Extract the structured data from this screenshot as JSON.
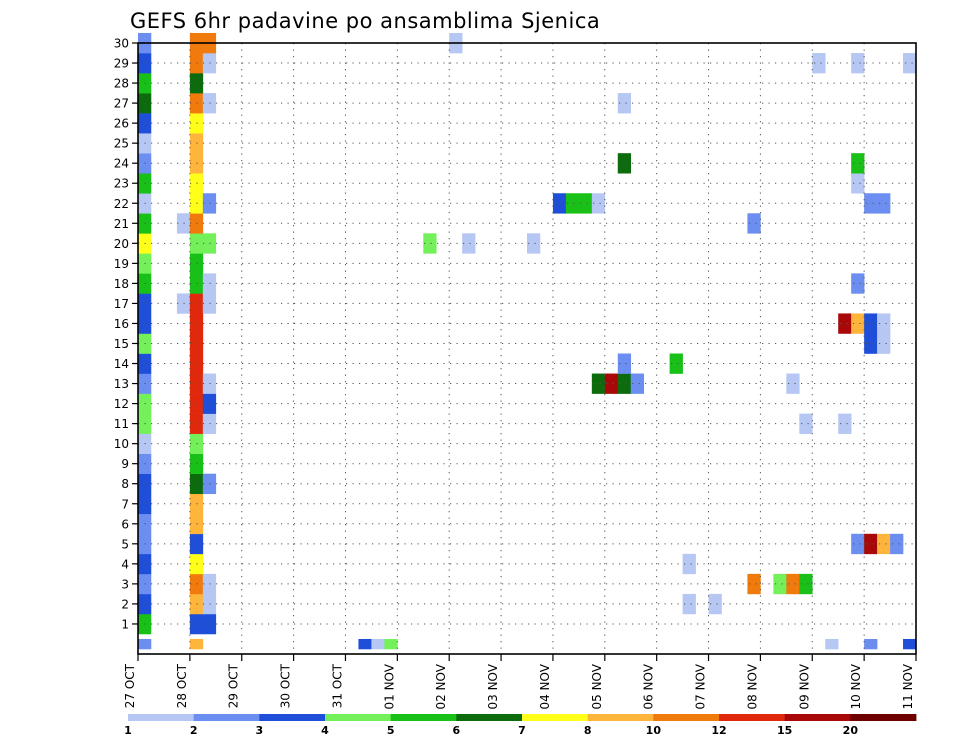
{
  "chart_data": {
    "type": "heatmap",
    "title": "GEFS 6hr padavine po ansamblima Sjenica",
    "xlabel": "",
    "ylabel": "",
    "x_tick_labels": [
      "27 OCT",
      "28 OCT",
      "29 OCT",
      "30 OCT",
      "31 OCT",
      "01 NOV",
      "02 NOV",
      "03 NOV",
      "04 NOV",
      "05 NOV",
      "06 NOV",
      "07 NOV",
      "08 NOV",
      "09 NOV",
      "10 NOV",
      "11 NOV"
    ],
    "y_tick_labels": [
      "1",
      "2",
      "3",
      "4",
      "5",
      "6",
      "7",
      "8",
      "9",
      "10",
      "11",
      "12",
      "13",
      "14",
      "15",
      "16",
      "17",
      "18",
      "19",
      "20",
      "21",
      "22",
      "23",
      "24",
      "25",
      "26",
      "27",
      "28",
      "29",
      "30"
    ],
    "x_range_steps": [
      0,
      60
    ],
    "y_range_members": [
      0,
      30
    ],
    "grid": true,
    "colorbar": {
      "position": "bottom",
      "levels": [
        "1",
        "2",
        "3",
        "4",
        "5",
        "6",
        "7",
        "8",
        "10",
        "12",
        "15",
        "20"
      ],
      "colors": [
        "#b7c7f4",
        "#6b8ef0",
        "#1f4fd8",
        "#73f05a",
        "#18c018",
        "#0c6b0c",
        "#ffff1a",
        "#ffb43c",
        "#f07a0c",
        "#e0280c",
        "#a80808",
        "#6e0000"
      ]
    },
    "cells": [
      {
        "m": 0,
        "t": 0,
        "c": 1
      },
      {
        "m": 0,
        "t": 4,
        "c": 7
      },
      {
        "m": 0,
        "t": 17,
        "c": 2
      },
      {
        "m": 0,
        "t": 18,
        "c": 0
      },
      {
        "m": 0,
        "t": 19,
        "c": 3
      },
      {
        "m": 0,
        "t": 53,
        "c": 0
      },
      {
        "m": 0,
        "t": 56,
        "c": 1
      },
      {
        "m": 0,
        "t": 59,
        "c": 2
      },
      {
        "m": 1,
        "t": 0,
        "c": 4
      },
      {
        "m": 1,
        "t": 4,
        "c": 2
      },
      {
        "m": 1,
        "t": 5,
        "c": 2
      },
      {
        "m": 2,
        "t": 0,
        "c": 2
      },
      {
        "m": 2,
        "t": 4,
        "c": 7
      },
      {
        "m": 2,
        "t": 5,
        "c": 0
      },
      {
        "m": 2,
        "t": 42,
        "c": 0
      },
      {
        "m": 2,
        "t": 44,
        "c": 0
      },
      {
        "m": 3,
        "t": 0,
        "c": 1
      },
      {
        "m": 3,
        "t": 4,
        "c": 8
      },
      {
        "m": 3,
        "t": 5,
        "c": 0
      },
      {
        "m": 3,
        "t": 47,
        "c": 8
      },
      {
        "m": 3,
        "t": 49,
        "c": 3
      },
      {
        "m": 3,
        "t": 50,
        "c": 8
      },
      {
        "m": 3,
        "t": 51,
        "c": 4
      },
      {
        "m": 4,
        "t": 0,
        "c": 2
      },
      {
        "m": 4,
        "t": 4,
        "c": 6
      },
      {
        "m": 4,
        "t": 42,
        "c": 0
      },
      {
        "m": 5,
        "t": 0,
        "c": 1
      },
      {
        "m": 5,
        "t": 4,
        "c": 2
      },
      {
        "m": 5,
        "t": 55,
        "c": 1
      },
      {
        "m": 5,
        "t": 56,
        "c": 10
      },
      {
        "m": 5,
        "t": 57,
        "c": 7
      },
      {
        "m": 5,
        "t": 58,
        "c": 1
      },
      {
        "m": 6,
        "t": 0,
        "c": 1
      },
      {
        "m": 6,
        "t": 4,
        "c": 7
      },
      {
        "m": 7,
        "t": 0,
        "c": 2
      },
      {
        "m": 7,
        "t": 4,
        "c": 7
      },
      {
        "m": 8,
        "t": 0,
        "c": 2
      },
      {
        "m": 8,
        "t": 4,
        "c": 5
      },
      {
        "m": 8,
        "t": 5,
        "c": 1
      },
      {
        "m": 9,
        "t": 0,
        "c": 1
      },
      {
        "m": 9,
        "t": 4,
        "c": 4
      },
      {
        "m": 10,
        "t": 0,
        "c": 0
      },
      {
        "m": 10,
        "t": 4,
        "c": 3
      },
      {
        "m": 11,
        "t": 0,
        "c": 3
      },
      {
        "m": 11,
        "t": 4,
        "c": 9
      },
      {
        "m": 11,
        "t": 5,
        "c": 0
      },
      {
        "m": 11,
        "t": 51,
        "c": 0
      },
      {
        "m": 11,
        "t": 54,
        "c": 0
      },
      {
        "m": 12,
        "t": 0,
        "c": 3
      },
      {
        "m": 12,
        "t": 4,
        "c": 9
      },
      {
        "m": 12,
        "t": 5,
        "c": 2
      },
      {
        "m": 13,
        "t": 0,
        "c": 1
      },
      {
        "m": 13,
        "t": 4,
        "c": 9
      },
      {
        "m": 13,
        "t": 5,
        "c": 0
      },
      {
        "m": 13,
        "t": 35,
        "c": 5
      },
      {
        "m": 13,
        "t": 36,
        "c": 10
      },
      {
        "m": 13,
        "t": 37,
        "c": 5
      },
      {
        "m": 13,
        "t": 38,
        "c": 1
      },
      {
        "m": 13,
        "t": 50,
        "c": 0
      },
      {
        "m": 14,
        "t": 0,
        "c": 2
      },
      {
        "m": 14,
        "t": 4,
        "c": 9
      },
      {
        "m": 14,
        "t": 37,
        "c": 1
      },
      {
        "m": 14,
        "t": 41,
        "c": 4
      },
      {
        "m": 15,
        "t": 0,
        "c": 3
      },
      {
        "m": 15,
        "t": 4,
        "c": 9
      },
      {
        "m": 15,
        "t": 56,
        "c": 2
      },
      {
        "m": 15,
        "t": 57,
        "c": 0
      },
      {
        "m": 16,
        "t": 0,
        "c": 2
      },
      {
        "m": 16,
        "t": 4,
        "c": 9
      },
      {
        "m": 16,
        "t": 54,
        "c": 10
      },
      {
        "m": 16,
        "t": 55,
        "c": 7
      },
      {
        "m": 16,
        "t": 56,
        "c": 2
      },
      {
        "m": 16,
        "t": 57,
        "c": 0
      },
      {
        "m": 17,
        "t": 0,
        "c": 2
      },
      {
        "m": 17,
        "t": 3,
        "c": 0
      },
      {
        "m": 17,
        "t": 4,
        "c": 9
      },
      {
        "m": 17,
        "t": 5,
        "c": 0
      },
      {
        "m": 18,
        "t": 0,
        "c": 4
      },
      {
        "m": 18,
        "t": 4,
        "c": 4
      },
      {
        "m": 18,
        "t": 5,
        "c": 0
      },
      {
        "m": 18,
        "t": 55,
        "c": 1
      },
      {
        "m": 19,
        "t": 0,
        "c": 3
      },
      {
        "m": 19,
        "t": 4,
        "c": 4
      },
      {
        "m": 20,
        "t": 0,
        "c": 6
      },
      {
        "m": 20,
        "t": 4,
        "c": 3
      },
      {
        "m": 20,
        "t": 5,
        "c": 3
      },
      {
        "m": 20,
        "t": 22,
        "c": 3
      },
      {
        "m": 20,
        "t": 25,
        "c": 0
      },
      {
        "m": 20,
        "t": 30,
        "c": 0
      },
      {
        "m": 21,
        "t": 0,
        "c": 4
      },
      {
        "m": 21,
        "t": 3,
        "c": 0
      },
      {
        "m": 21,
        "t": 4,
        "c": 8
      },
      {
        "m": 21,
        "t": 47,
        "c": 1
      },
      {
        "m": 22,
        "t": 0,
        "c": 0
      },
      {
        "m": 22,
        "t": 4,
        "c": 6
      },
      {
        "m": 22,
        "t": 5,
        "c": 1
      },
      {
        "m": 22,
        "t": 32,
        "c": 2
      },
      {
        "m": 22,
        "t": 33,
        "c": 4
      },
      {
        "m": 22,
        "t": 34,
        "c": 4
      },
      {
        "m": 22,
        "t": 35,
        "c": 0
      },
      {
        "m": 22,
        "t": 56,
        "c": 1
      },
      {
        "m": 22,
        "t": 57,
        "c": 1
      },
      {
        "m": 23,
        "t": 0,
        "c": 4
      },
      {
        "m": 23,
        "t": 4,
        "c": 6
      },
      {
        "m": 23,
        "t": 55,
        "c": 0
      },
      {
        "m": 24,
        "t": 0,
        "c": 1
      },
      {
        "m": 24,
        "t": 4,
        "c": 7
      },
      {
        "m": 24,
        "t": 37,
        "c": 5
      },
      {
        "m": 24,
        "t": 55,
        "c": 4
      },
      {
        "m": 25,
        "t": 0,
        "c": 0
      },
      {
        "m": 25,
        "t": 4,
        "c": 7
      },
      {
        "m": 26,
        "t": 0,
        "c": 2
      },
      {
        "m": 26,
        "t": 4,
        "c": 6
      },
      {
        "m": 27,
        "t": 0,
        "c": 5
      },
      {
        "m": 27,
        "t": 4,
        "c": 8
      },
      {
        "m": 27,
        "t": 5,
        "c": 0
      },
      {
        "m": 27,
        "t": 37,
        "c": 0
      },
      {
        "m": 28,
        "t": 0,
        "c": 4
      },
      {
        "m": 28,
        "t": 4,
        "c": 5
      },
      {
        "m": 29,
        "t": 0,
        "c": 2
      },
      {
        "m": 29,
        "t": 4,
        "c": 8
      },
      {
        "m": 29,
        "t": 5,
        "c": 0
      },
      {
        "m": 29,
        "t": 52,
        "c": 0
      },
      {
        "m": 29,
        "t": 55,
        "c": 0
      },
      {
        "m": 29,
        "t": 59,
        "c": 0
      },
      {
        "m": 30,
        "t": 0,
        "c": 1
      },
      {
        "m": 30,
        "t": 4,
        "c": 8
      },
      {
        "m": 30,
        "t": 5,
        "c": 8
      },
      {
        "m": 30,
        "t": 24,
        "c": 0
      }
    ]
  }
}
